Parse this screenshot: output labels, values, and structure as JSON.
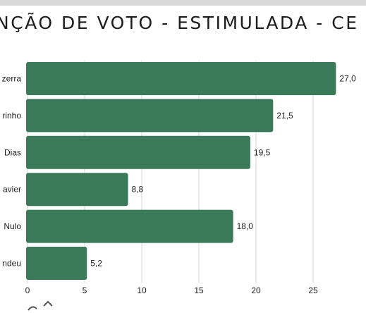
{
  "header": {
    "title": "NÇÃO DE VOTO - ESTIMULADA - CE"
  },
  "colors": {
    "bar": "#3a7a58",
    "grid": "#d6d6d6",
    "text": "#1c1c1c"
  },
  "chart_data": {
    "type": "bar",
    "orientation": "horizontal",
    "categories": [
      "zerra",
      "rinho",
      "Dias",
      "avier",
      "Nulo",
      "ndeu"
    ],
    "values": [
      27.0,
      21.5,
      19.5,
      8.8,
      18.0,
      5.2
    ],
    "value_labels": [
      "27,0",
      "21,5",
      "19,5",
      "8,8",
      "18,0",
      "5,2"
    ],
    "xlim": [
      0,
      29
    ],
    "xticks": [
      0,
      5,
      10,
      15,
      20,
      25
    ],
    "grid": true,
    "title": "NÇÃO DE VOTO - ESTIMULADA - CE"
  }
}
